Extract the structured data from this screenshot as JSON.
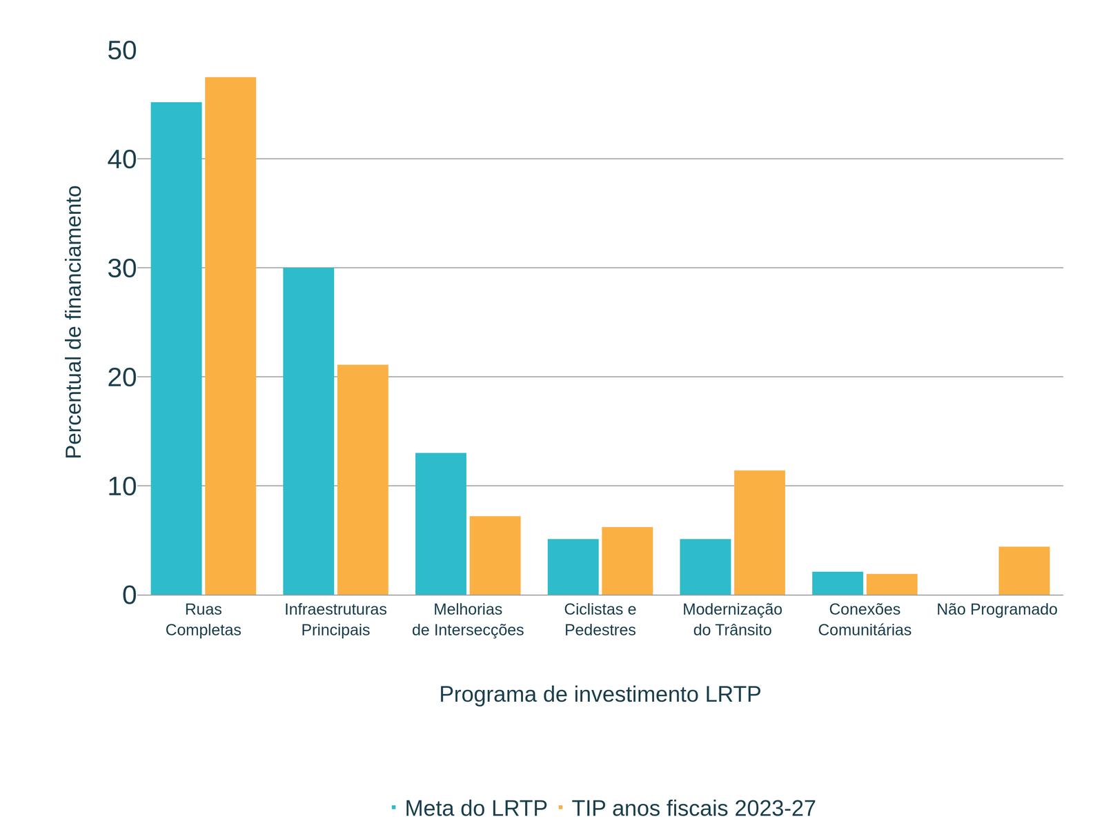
{
  "chart_data": {
    "type": "bar",
    "x_label": "Programa de investimento LRTP",
    "y_label": "Percentual de financiamento",
    "categories": [
      "Ruas\nCompletas",
      "Infraestruturas\nPrincipais",
      "Melhorias\nde Intersecções",
      "Ciclistas e\nPedestres",
      "Modernização\ndo Trânsito",
      "Conexões\nComunitárias",
      "Não Programado"
    ],
    "series": [
      {
        "name": "Meta do LRTP",
        "color": "#2ebbca",
        "values": [
          45.2,
          30.0,
          13.0,
          5.1,
          5.1,
          2.1,
          0
        ]
      },
      {
        "name": "TIP anos fiscais 2023-27",
        "color": "#fbb044",
        "values": [
          47.5,
          21.1,
          7.2,
          6.2,
          11.4,
          1.9,
          4.4
        ]
      }
    ],
    "ylim": [
      0,
      50
    ],
    "yticks": [
      0,
      10,
      20,
      30,
      40,
      50
    ],
    "grid": true,
    "legend": "bottom"
  }
}
